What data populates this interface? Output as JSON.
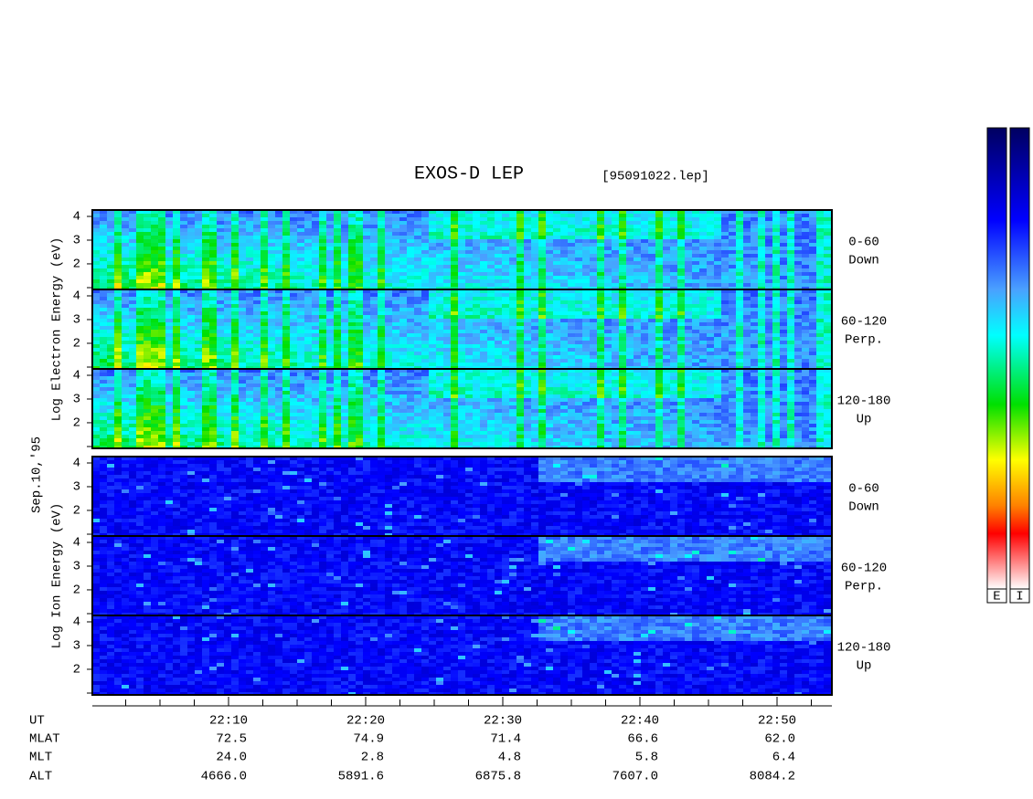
{
  "chart_data": {
    "type": "spectrogram",
    "title": "EXOS-D LEP",
    "subtitle": "[95091022.lep]",
    "date_label": "Sep.10,'95",
    "ylim": [
      0.92,
      4.27
    ],
    "yticks": [
      2,
      3,
      4
    ],
    "xticks": [
      "22:10",
      "22:20",
      "22:30",
      "22:40",
      "22:50"
    ],
    "groups": [
      {
        "ylabel": "Log Electron Energy (eV)",
        "panels": [
          {
            "pitch": "0-60",
            "direction": "Down"
          },
          {
            "pitch": "60-120",
            "direction": "Perp."
          },
          {
            "pitch": "120-180",
            "direction": "Up"
          }
        ]
      },
      {
        "ylabel": "Log Ion Energy (eV)",
        "panels": [
          {
            "pitch": "0-60",
            "direction": "Down"
          },
          {
            "pitch": "60-120",
            "direction": "Perp."
          },
          {
            "pitch": "120-180",
            "direction": "Up"
          }
        ]
      }
    ],
    "colorbar_labels": [
      "E",
      "I"
    ],
    "orbit": {
      "rows": [
        {
          "label": "UT"
        },
        {
          "label": "MLAT",
          "values": [
            "72.5",
            "74.9",
            "71.4",
            "66.6",
            "62.0"
          ]
        },
        {
          "label": "MLT",
          "values": [
            "24.0",
            "2.8",
            "4.8",
            "5.8",
            "6.4"
          ]
        },
        {
          "label": "ALT",
          "values": [
            "4666.0",
            "5891.6",
            "6875.8",
            "7607.0",
            "8084.2"
          ]
        }
      ]
    }
  }
}
